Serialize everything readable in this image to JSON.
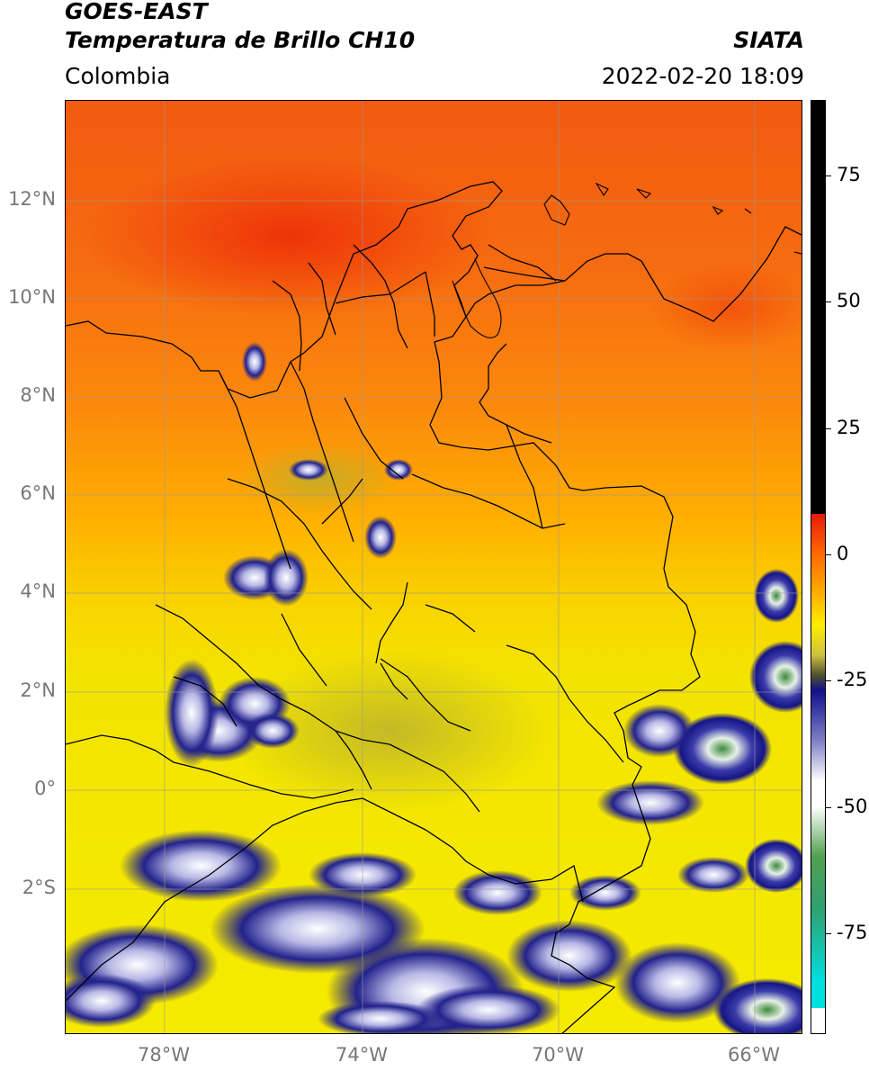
{
  "header": {
    "title_line1": "GOES-EAST",
    "title_line2": "Temperatura de Brillo CH10",
    "source": "SIATA",
    "region": "Colombia",
    "datetime": "2022-02-20 18:09"
  },
  "map": {
    "lat_ticks": [
      "12°N",
      "10°N",
      "8°N",
      "6°N",
      "4°N",
      "2°N",
      "0°",
      "2°S"
    ],
    "lon_ticks": [
      "78°W",
      "74°W",
      "70°W",
      "66°W"
    ],
    "colors": {
      "warm_red": "#f23a10",
      "orange": "#ff8a10",
      "yellow": "#f8e800",
      "olive": "#b8b030",
      "navy": "#1a1a80",
      "blue": "#3a3aa8",
      "lavender": "#c8c8ec",
      "green": "#3a8a3a",
      "border": "#000000",
      "grid": "#9a9a9a"
    }
  },
  "colorbar": {
    "ticks": [
      "75",
      "50",
      "25",
      "0",
      "-25",
      "-50",
      "-75"
    ],
    "stops": [
      {
        "color": "#000000",
        "from": 90,
        "to": 8
      },
      {
        "color": "#e81a0a",
        "from": 8,
        "to": 0
      },
      {
        "color": "#ff9a00",
        "from": 0,
        "to": -10
      },
      {
        "color": "#ffee00",
        "from": -10,
        "to": -20
      },
      {
        "color": "#6a6a30",
        "from": -20,
        "to": -25
      },
      {
        "color": "#10108a",
        "from": -25,
        "to": -35
      },
      {
        "color": "#ffffff",
        "from": -35,
        "to": -55
      },
      {
        "color": "#2a8a2a",
        "from": -55,
        "to": -75
      },
      {
        "color": "#00e0e0",
        "from": -75,
        "to": -90
      },
      {
        "color": "#ffffff",
        "from": -90,
        "to": -95
      }
    ]
  }
}
